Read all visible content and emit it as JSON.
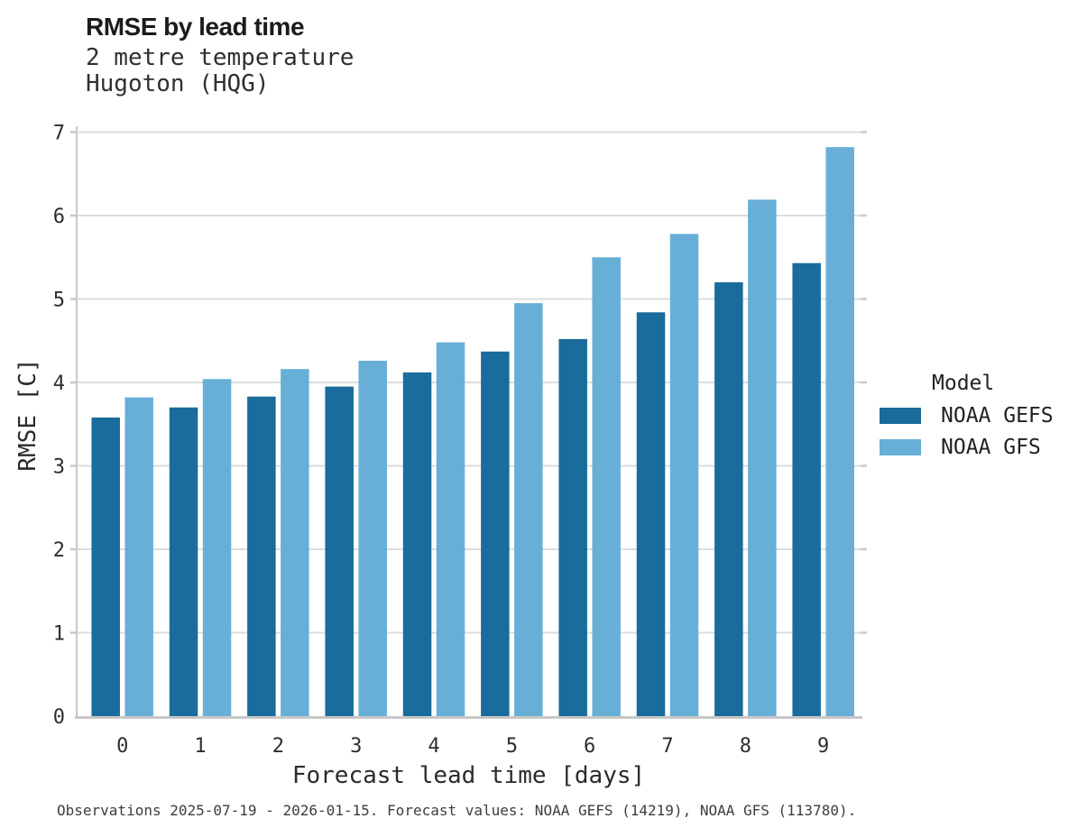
{
  "header": {
    "title": "RMSE by lead time",
    "subtitle_line1": "2 metre temperature",
    "subtitle_line2": "Hugoton (HQG)"
  },
  "legend": {
    "title": "Model",
    "items": [
      {
        "label": "NOAA GEFS",
        "color": "#196C9B"
      },
      {
        "label": "NOAA GFS",
        "color": "#68AFD7"
      }
    ]
  },
  "footer": {
    "caption": "Observations 2025-07-19 - 2026-01-15. Forecast values: NOAA GEFS (14219), NOAA GFS (113780)."
  },
  "chart_data": {
    "type": "bar",
    "title": "RMSE by lead time",
    "subtitle_lines": [
      "2 metre temperature",
      "Hugoton (HQG)"
    ],
    "xlabel": "Forecast lead time [days]",
    "ylabel": "RMSE [C]",
    "categories": [
      "0",
      "1",
      "2",
      "3",
      "4",
      "5",
      "6",
      "7",
      "8",
      "9"
    ],
    "series": [
      {
        "name": "NOAA GEFS",
        "color": "#196C9B",
        "values": [
          3.58,
          3.7,
          3.83,
          3.95,
          4.12,
          4.37,
          4.52,
          4.84,
          5.2,
          5.43
        ]
      },
      {
        "name": "NOAA GFS",
        "color": "#68AFD7",
        "values": [
          3.82,
          4.04,
          4.16,
          4.26,
          4.48,
          4.95,
          5.5,
          5.78,
          6.19,
          6.82
        ]
      }
    ],
    "ylim": [
      0,
      7.07
    ],
    "yticks": [
      0,
      1,
      2,
      3,
      4,
      5,
      6,
      7
    ],
    "grid": true,
    "legend_title": "Model",
    "legend_position": "right",
    "caption": "Observations 2025-07-19 - 2026-01-15. Forecast values: NOAA GEFS (14219), NOAA GFS (113780)."
  },
  "colors": {
    "gridline": "#DCDCDC",
    "axis": "#C8C8C8",
    "tick": "#C9C9C9",
    "tick_label": "#2e2e2e"
  }
}
